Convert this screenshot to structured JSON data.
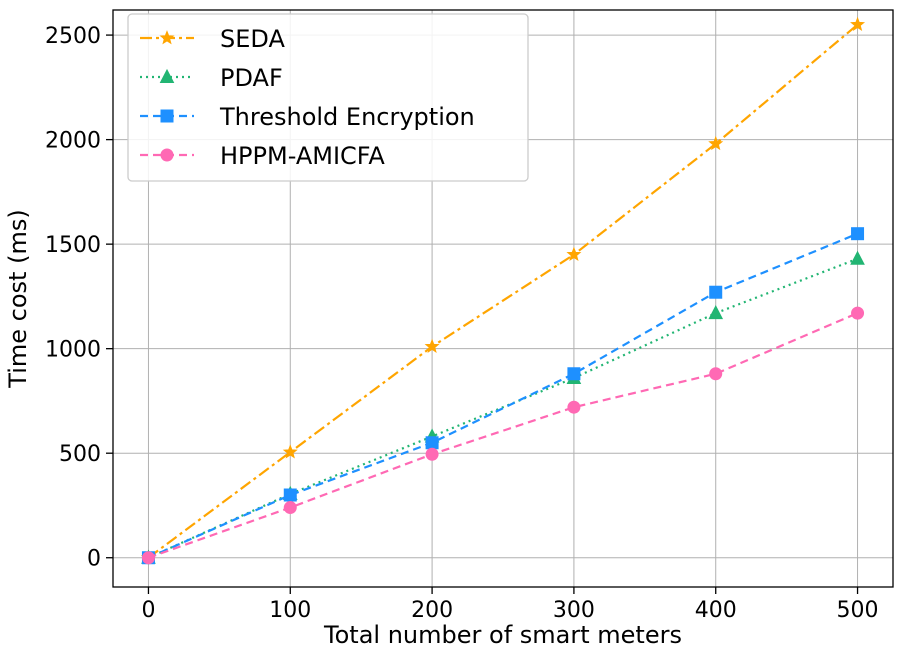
{
  "chart_data": {
    "type": "line",
    "title": "",
    "xlabel": "Total number of smart meters",
    "ylabel": "Time cost (ms)",
    "x": [
      0,
      100,
      200,
      300,
      400,
      500
    ],
    "xticks": [
      "0",
      "100",
      "200",
      "300",
      "400",
      "500"
    ],
    "yticks": [
      "0",
      "500",
      "1000",
      "1500",
      "2000",
      "2500"
    ],
    "xlim": [
      -25,
      525
    ],
    "ylim": [
      -140,
      2620
    ],
    "grid": true,
    "legend_position": "upper-left",
    "series": [
      {
        "name": "SEDA",
        "values": [
          0,
          505,
          1010,
          1450,
          1980,
          2550
        ],
        "color": "#FFA500",
        "dash": "dashdot",
        "marker": "star"
      },
      {
        "name": "PDAF",
        "values": [
          0,
          305,
          580,
          860,
          1170,
          1430
        ],
        "color": "#22B573",
        "dash": "dotted",
        "marker": "triangle"
      },
      {
        "name": "Threshold Encryption",
        "values": [
          0,
          300,
          550,
          880,
          1270,
          1550
        ],
        "color": "#1E90FF",
        "dash": "dashed",
        "marker": "square"
      },
      {
        "name": "HPPM-AMICFA",
        "values": [
          0,
          240,
          495,
          720,
          880,
          1170
        ],
        "color": "#FF69B4",
        "dash": "dashed",
        "marker": "circle"
      }
    ]
  }
}
